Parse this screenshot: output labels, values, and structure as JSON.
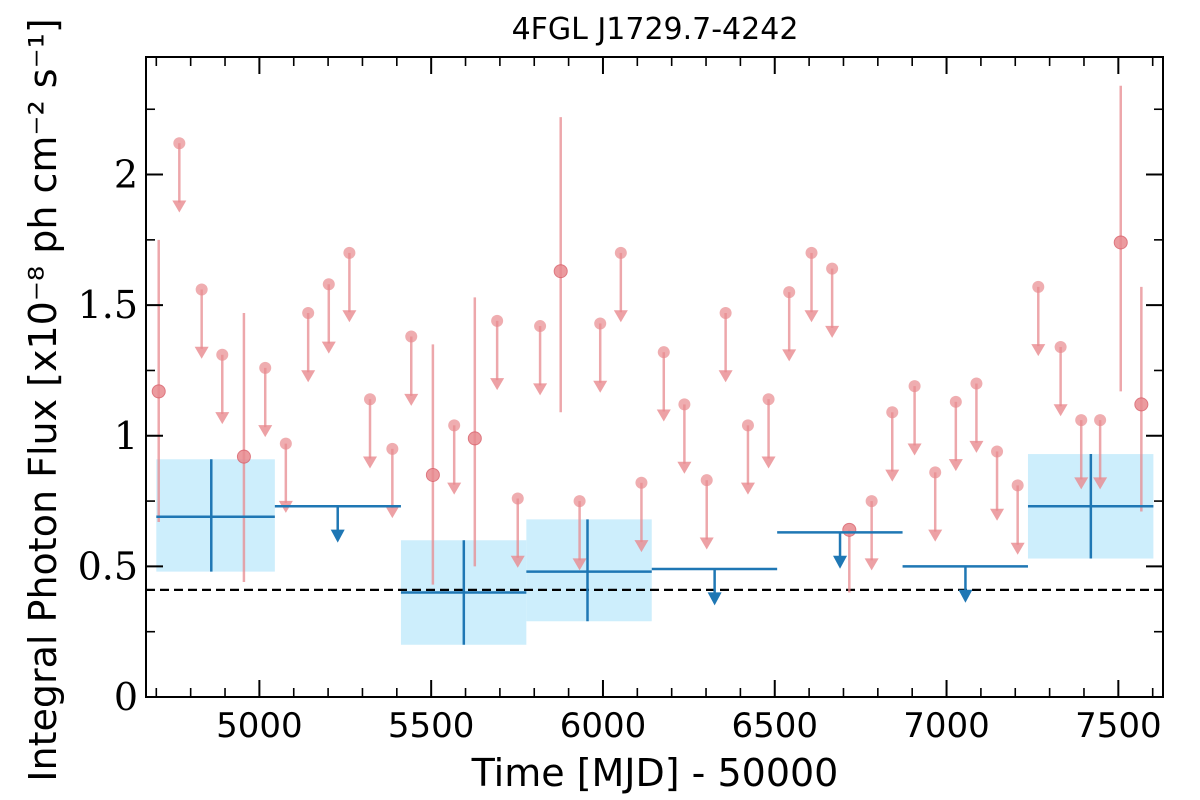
{
  "chart_data": {
    "type": "scatter",
    "title": "4FGL J1729.7-4242",
    "xlabel": "Time [MJD] - 50000",
    "ylabel": "Integral Photon Flux [x10⁻⁸ ph cm⁻² s⁻¹]",
    "xlim": [
      4670,
      7630
    ],
    "ylim": [
      0,
      2.45
    ],
    "x_ticks": [
      "5000",
      "5500",
      "6000",
      "6500",
      "7000",
      "7500"
    ],
    "x_tick_values": [
      5000,
      5500,
      6000,
      6500,
      7000,
      7500
    ],
    "y_ticks": [
      "0",
      "0.5",
      "1",
      "1.5",
      "2"
    ],
    "y_tick_values": [
      0,
      0.5,
      1,
      1.5,
      2
    ],
    "reference_line": 0.41,
    "colors": {
      "fine_series": "#e88a8f",
      "coarse_series": "#1f77b4",
      "coarse_band": "#cdeefc",
      "reference_line": "#000000"
    },
    "fine_detections": [
      {
        "x": 4707,
        "y": 1.17,
        "lo": 0.67,
        "hi": 1.75
      },
      {
        "x": 4955,
        "y": 0.92,
        "lo": 0.44,
        "hi": 1.47
      },
      {
        "x": 5505,
        "y": 0.85,
        "lo": 0.43,
        "hi": 1.35
      },
      {
        "x": 5627,
        "y": 0.99,
        "lo": 0.5,
        "hi": 1.53
      },
      {
        "x": 5877,
        "y": 1.63,
        "lo": 1.09,
        "hi": 2.22
      },
      {
        "x": 6717,
        "y": 0.64,
        "lo": 0.4,
        "hi": 0.64
      },
      {
        "x": 7507,
        "y": 1.74,
        "lo": 1.17,
        "hi": 2.34
      },
      {
        "x": 7567,
        "y": 1.12,
        "lo": 0.71,
        "hi": 1.57
      }
    ],
    "fine_upper_limits": [
      {
        "x": 4767,
        "y": 2.12
      },
      {
        "x": 4832,
        "y": 1.56
      },
      {
        "x": 4892,
        "y": 1.31
      },
      {
        "x": 5017,
        "y": 1.26
      },
      {
        "x": 5077,
        "y": 0.97
      },
      {
        "x": 5142,
        "y": 1.47
      },
      {
        "x": 5202,
        "y": 1.58
      },
      {
        "x": 5262,
        "y": 1.7
      },
      {
        "x": 5322,
        "y": 1.14
      },
      {
        "x": 5387,
        "y": 0.95
      },
      {
        "x": 5442,
        "y": 1.38
      },
      {
        "x": 5567,
        "y": 1.04
      },
      {
        "x": 5692,
        "y": 1.44
      },
      {
        "x": 5752,
        "y": 0.76
      },
      {
        "x": 5817,
        "y": 1.42
      },
      {
        "x": 5932,
        "y": 0.75
      },
      {
        "x": 5992,
        "y": 1.43
      },
      {
        "x": 6052,
        "y": 1.7
      },
      {
        "x": 6112,
        "y": 0.82
      },
      {
        "x": 6177,
        "y": 1.32
      },
      {
        "x": 6237,
        "y": 1.12
      },
      {
        "x": 6302,
        "y": 0.83
      },
      {
        "x": 6357,
        "y": 1.47
      },
      {
        "x": 6422,
        "y": 1.04
      },
      {
        "x": 6482,
        "y": 1.14
      },
      {
        "x": 6542,
        "y": 1.55
      },
      {
        "x": 6607,
        "y": 1.7
      },
      {
        "x": 6667,
        "y": 1.64
      },
      {
        "x": 6782,
        "y": 0.75
      },
      {
        "x": 6842,
        "y": 1.09
      },
      {
        "x": 6907,
        "y": 1.19
      },
      {
        "x": 6967,
        "y": 0.86
      },
      {
        "x": 7027,
        "y": 1.13
      },
      {
        "x": 7087,
        "y": 1.2
      },
      {
        "x": 7147,
        "y": 0.94
      },
      {
        "x": 7207,
        "y": 0.81
      },
      {
        "x": 7267,
        "y": 1.57
      },
      {
        "x": 7332,
        "y": 1.34
      },
      {
        "x": 7392,
        "y": 1.06
      },
      {
        "x": 7447,
        "y": 1.06
      }
    ],
    "coarse_detections": [
      {
        "x0": 4700,
        "x1": 5045,
        "x": 4860,
        "y": 0.69,
        "lo": 0.48,
        "hi": 0.91
      },
      {
        "x0": 5412,
        "x1": 5777,
        "x": 5595,
        "y": 0.4,
        "lo": 0.2,
        "hi": 0.6
      },
      {
        "x0": 5777,
        "x1": 6142,
        "x": 5955,
        "y": 0.48,
        "lo": 0.29,
        "hi": 0.68
      },
      {
        "x0": 7237,
        "x1": 7602,
        "x": 7420,
        "y": 0.73,
        "lo": 0.53,
        "hi": 0.93
      }
    ],
    "coarse_upper_limits": [
      {
        "x0": 5045,
        "x1": 5412,
        "x": 5228,
        "y": 0.73
      },
      {
        "x0": 6142,
        "x1": 6507,
        "x": 6325,
        "y": 0.49
      },
      {
        "x0": 6507,
        "x1": 6872,
        "x": 6690,
        "y": 0.63
      },
      {
        "x0": 6872,
        "x1": 7237,
        "x": 7055,
        "y": 0.5
      }
    ]
  }
}
